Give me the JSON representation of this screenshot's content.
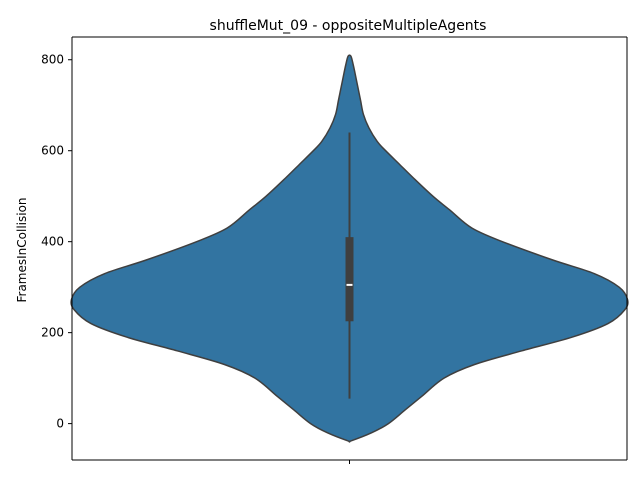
{
  "chart_data": {
    "type": "violin",
    "title": "shuffleMut_09 - oppositeMultipleAgents",
    "xlabel": "",
    "ylabel": "FramesInCollision",
    "ylim": [
      -80,
      850
    ],
    "yticks": [
      0,
      200,
      400,
      600,
      800
    ],
    "ytick_labels": [
      "0",
      "200",
      "400",
      "600",
      "800"
    ],
    "grid": false,
    "legend": "none",
    "violin": {
      "color": "#3274a1",
      "edge_color": "#3f3f3f",
      "density_y": [
        -38,
        -20,
        0,
        30,
        60,
        100,
        130,
        160,
        190,
        220,
        250,
        273,
        300,
        330,
        360,
        400,
        430,
        470,
        500,
        540,
        570,
        600,
        620,
        650,
        680,
        710,
        740,
        770,
        790,
        808
      ],
      "density_halfwidth": [
        0.005,
        0.08,
        0.14,
        0.2,
        0.26,
        0.34,
        0.45,
        0.62,
        0.8,
        0.93,
        0.99,
        1.0,
        0.97,
        0.88,
        0.73,
        0.55,
        0.44,
        0.36,
        0.3,
        0.23,
        0.18,
        0.13,
        0.1,
        0.07,
        0.05,
        0.04,
        0.03,
        0.02,
        0.013,
        0.005
      ],
      "whisker_low": 55,
      "q1": 225,
      "median": 305,
      "q3": 410,
      "whisker_high": 640
    }
  }
}
